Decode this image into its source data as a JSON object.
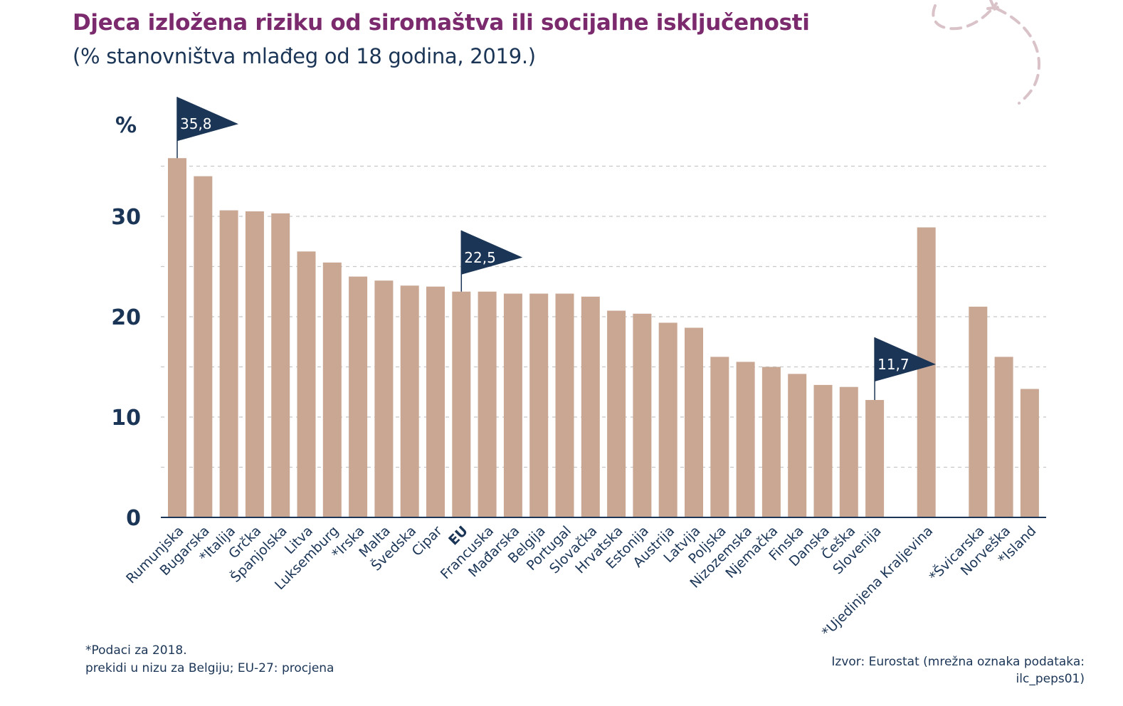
{
  "chart_data": {
    "type": "bar",
    "title": "Djeca izložena riziku od siromaštva ili socijalne isključenosti",
    "subtitle": "(% stanovništva mlađeg od 18 godina, 2019.)",
    "ylabel": "%",
    "ylim": [
      0,
      37
    ],
    "yticks": [
      0,
      10,
      20,
      30
    ],
    "ytick_labels": [
      "0",
      "10",
      "20",
      "30"
    ],
    "grid": "dashed horizontal every 5",
    "categories": [
      "Rumunjska",
      "Bugarska",
      "*Italija",
      "Grčka",
      "Španjolska",
      "Litva",
      "Luksemburg",
      "*Irska",
      "Malta",
      "Švedska",
      "Cipar",
      "EU",
      "Francuska",
      "Mađarska",
      "Belgija",
      "Portugal",
      "Slovačka",
      "Hrvatska",
      "Estonija",
      "Austrija",
      "Latvija",
      "Poljska",
      "Nizozemska",
      "Njemačka",
      "Finska",
      "Danska",
      "Češka",
      "Slovenija",
      "*Ujedinjena Kraljevina",
      "*Švicarska",
      "Norveška",
      "*Island"
    ],
    "values": [
      35.8,
      34.0,
      30.6,
      30.5,
      30.3,
      26.5,
      25.4,
      24.0,
      23.6,
      23.1,
      23.0,
      22.5,
      22.5,
      22.3,
      22.3,
      22.3,
      22.0,
      20.6,
      20.3,
      19.4,
      18.9,
      16.0,
      15.5,
      15.0,
      14.3,
      13.2,
      13.0,
      11.7,
      28.9,
      21.0,
      16.0,
      12.8
    ],
    "bar_color": "#c9a793",
    "flag_color": "#1b3556",
    "annotations": [
      {
        "category": "Rumunjska",
        "label": "35,8"
      },
      {
        "category": "EU",
        "label": "22,5"
      },
      {
        "category": "Slovenija",
        "label": "11,7"
      }
    ]
  },
  "footnote": [
    "*Podaci za 2018.",
    "prekidi u nizu za Belgiju; EU-27: procjena"
  ],
  "source": [
    "Izvor: Eurostat (mrežna oznaka podataka:",
    "ilc_peps01)"
  ]
}
